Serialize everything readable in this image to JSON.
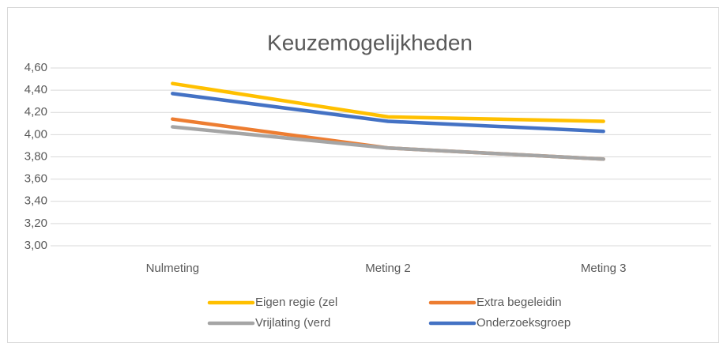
{
  "chart_data": {
    "type": "line",
    "title": "Keuzemogelijkheden",
    "categories": [
      "Nulmeting",
      "Meting 2",
      "Meting 3"
    ],
    "series": [
      {
        "name": "Eigen regie (zel",
        "color": "#FFC000",
        "values": [
          4.46,
          4.16,
          4.12
        ]
      },
      {
        "name": "Extra begeleidin",
        "color": "#ED7D31",
        "values": [
          4.14,
          3.88,
          3.78
        ]
      },
      {
        "name": "Vrijlating (verd",
        "color": "#A5A5A5",
        "values": [
          4.07,
          3.88,
          3.78
        ]
      },
      {
        "name": "Onderzoeksgroep",
        "color": "#4472C4",
        "values": [
          4.37,
          4.12,
          4.03
        ]
      }
    ],
    "ylim": [
      3.0,
      4.6
    ],
    "yticks": [
      {
        "value": 3.0,
        "label": "3,00"
      },
      {
        "value": 3.2,
        "label": "3,20"
      },
      {
        "value": 3.4,
        "label": "3,40"
      },
      {
        "value": 3.6,
        "label": "3,60"
      },
      {
        "value": 3.8,
        "label": "3,80"
      },
      {
        "value": 4.0,
        "label": "4,00"
      },
      {
        "value": 4.2,
        "label": "4,20"
      },
      {
        "value": 4.4,
        "label": "4,40"
      },
      {
        "value": 4.6,
        "label": "4,60"
      }
    ],
    "grid": true,
    "legend": "bottom"
  }
}
